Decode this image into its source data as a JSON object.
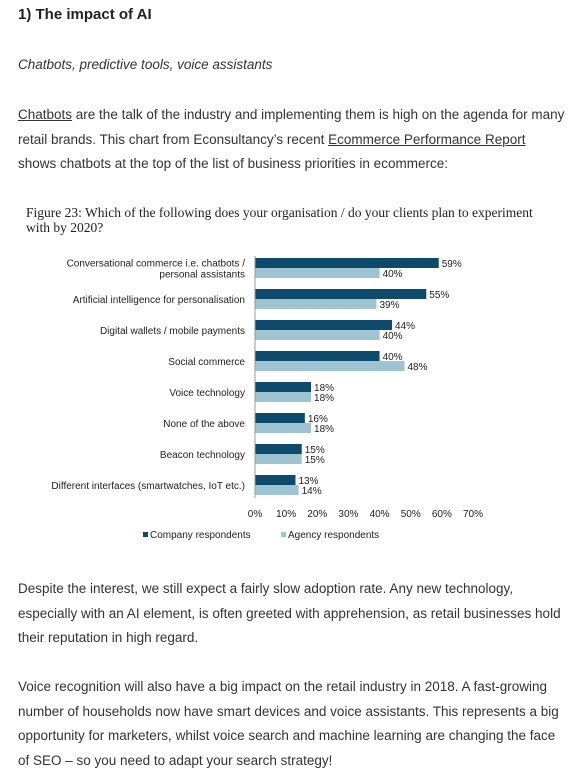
{
  "section": {
    "heading": "1) The impact of AI",
    "subheading": "Chatbots, predictive tools, voice assistants"
  },
  "intro": {
    "link1": "Chatbots",
    "text1": " are the talk of the industry and implementing them is high on the agenda for many retail brands. This chart from Econsultancy’s recent ",
    "link2": "Ecommerce Performance Report",
    "text2": " shows chatbots at the top of the list of business priorities in ecommerce:"
  },
  "colors": {
    "company": "#0e4a6b",
    "agency": "#9ec4d2"
  },
  "chart_data": {
    "type": "bar",
    "orientation": "horizontal",
    "title": "Figure 23: Which of the following does your organisation / do your clients plan to experiment with by 2020?",
    "categories": [
      "Conversational commerce i.e. chatbots / personal assistants",
      "Artificial intelligence for personalisation",
      "Digital wallets / mobile payments",
      "Social commerce",
      "Voice technology",
      "None of the above",
      "Beacon technology",
      "Different interfaces (smartwatches, IoT etc.)"
    ],
    "series": [
      {
        "name": "Company respondents",
        "values": [
          59,
          55,
          44,
          40,
          18,
          16,
          15,
          13
        ]
      },
      {
        "name": "Agency respondents",
        "values": [
          40,
          39,
          40,
          48,
          18,
          18,
          15,
          14
        ]
      }
    ],
    "xlim": [
      0,
      70
    ],
    "xticks": [
      "0%",
      "10%",
      "20%",
      "30%",
      "40%",
      "50%",
      "60%",
      "70%"
    ],
    "legend": "bottom",
    "grid": false
  },
  "body": {
    "p2": "Despite the interest, we still expect a fairly slow adoption rate. Any new technology, especially with an AI element, is often greeted with apprehension, as retail businesses hold their reputation in high regard.",
    "p3": "Voice recognition will also have a big impact on the retail industry in 2018. A fast-growing number of households now have smart devices and voice assistants. This represents a big opportunity for marketers, whilst voice search and machine learning are changing the face of SEO – so you need to adapt your search strategy!"
  }
}
